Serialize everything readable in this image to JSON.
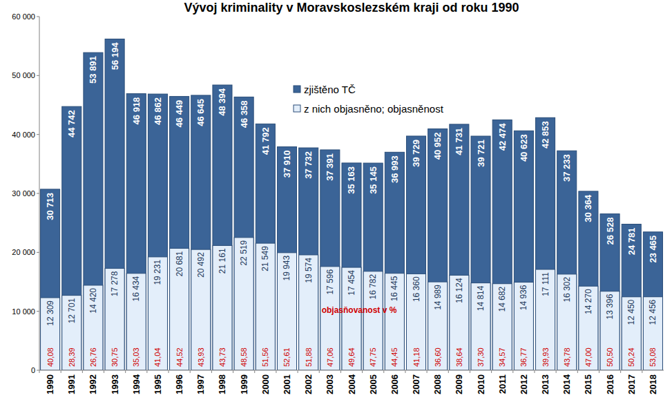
{
  "chart_data": {
    "type": "bar",
    "title": "Vývoj kriminality v Moravskoslezském kraji od roku 1990",
    "categories": [
      "1990",
      "1991",
      "1992",
      "1993",
      "1994",
      "1995",
      "1996",
      "1997",
      "1998",
      "1999",
      "2000",
      "2001",
      "2002",
      "2003",
      "2004",
      "2005",
      "2006",
      "2007",
      "2008",
      "2009",
      "2010",
      "2011",
      "2012",
      "2013",
      "2014",
      "2015",
      "2016",
      "2017",
      "2018"
    ],
    "series": [
      {
        "name": "zjištěno TČ",
        "color": "#3b6497",
        "values": [
          30713,
          44742,
          53891,
          56194,
          46918,
          46862,
          46449,
          46645,
          48394,
          46358,
          41792,
          37910,
          37732,
          37391,
          35163,
          35145,
          36993,
          39729,
          40952,
          41731,
          39721,
          42474,
          40623,
          42853,
          37233,
          30364,
          26528,
          24781,
          23465
        ],
        "value_labels": [
          "30 713",
          "44 742",
          "53 891",
          "56 194",
          "46 918",
          "46 862",
          "46 449",
          "46 645",
          "48 394",
          "46 358",
          "41 792",
          "37 910",
          "37 732",
          "37 391",
          "35 163",
          "35 145",
          "36 993",
          "39 729",
          "40 952",
          "41 731",
          "39 721",
          "42 474",
          "40 623",
          "42 853",
          "37 233",
          "30 364",
          "26 528",
          "24 781",
          "23 465"
        ]
      },
      {
        "name": "z nich objasněno; objasněnost",
        "color": "#e3eefa",
        "values": [
          12309,
          12701,
          14420,
          17278,
          16434,
          19231,
          20681,
          20492,
          21161,
          22519,
          21549,
          19943,
          19574,
          17596,
          17454,
          16782,
          16445,
          16360,
          14989,
          16124,
          14814,
          14682,
          14936,
          17111,
          16302,
          14270,
          13396,
          12450,
          12456
        ],
        "value_labels": [
          "12 309",
          "12 701",
          "14 420",
          "17 278",
          "16 434",
          "19 231",
          "20 681",
          "20 492",
          "21 161",
          "22 519",
          "21 549",
          "19 943",
          "19 574",
          "17 596",
          "17 454",
          "16 782",
          "16 445",
          "16 360",
          "14 989",
          "16 124",
          "14 814",
          "14 682",
          "14 936",
          "17 111",
          "16 302",
          "14 270",
          "13 396",
          "12 450",
          "12 456"
        ],
        "rates": [
          40.08,
          28.39,
          26.76,
          30.75,
          35.03,
          41.04,
          44.52,
          43.93,
          43.73,
          48.58,
          51.56,
          52.61,
          51.88,
          47.06,
          49.64,
          47.75,
          44.45,
          41.18,
          36.6,
          38.64,
          37.3,
          34.57,
          36.77,
          39.93,
          43.78,
          47.0,
          50.5,
          50.24,
          53.08
        ],
        "rate_labels": [
          "40,08",
          "28,39",
          "26,76",
          "30,75",
          "35,03",
          "41,04",
          "44,52",
          "43,93",
          "43,73",
          "48,58",
          "51,56",
          "52,61",
          "51,88",
          "47,06",
          "49,64",
          "47,75",
          "44,45",
          "41,18",
          "36,60",
          "38,64",
          "37,30",
          "34,57",
          "36,77",
          "39,93",
          "43,78",
          "47,00",
          "50,50",
          "50,24",
          "53,08"
        ]
      }
    ],
    "annotations": [
      "objasňovanost v %"
    ],
    "ylim": [
      0,
      60000
    ],
    "yticks": [
      0,
      {
        "value": 10000,
        "label": "10 000"
      },
      {
        "value": 20000,
        "label": "20 000"
      },
      {
        "value": 30000,
        "label": "30 000"
      },
      {
        "value": 40000,
        "label": "40 000"
      },
      {
        "value": 50000,
        "label": "50 000"
      },
      {
        "value": 60000,
        "label": "60 000"
      }
    ],
    "stacked": false,
    "grid": false,
    "legend": "top",
    "data_labels": true
  }
}
